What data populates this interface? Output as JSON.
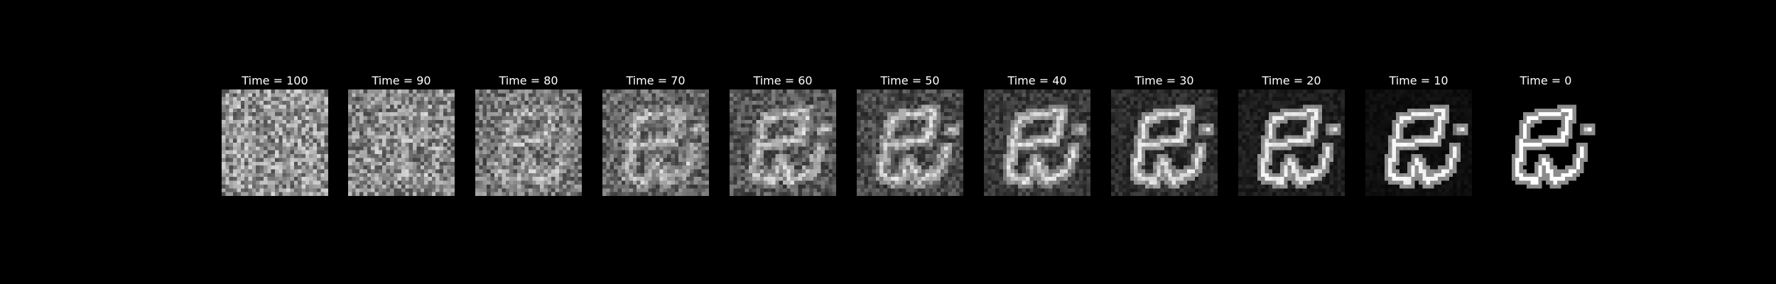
{
  "figure": {
    "background": "#000000",
    "title_color": "#ffffff",
    "colormap": "gray",
    "panels": [
      {
        "title": "Time = 100",
        "noise_level": 1.0
      },
      {
        "title": "Time = 90",
        "noise_level": 0.9
      },
      {
        "title": "Time = 80",
        "noise_level": 0.8
      },
      {
        "title": "Time = 70",
        "noise_level": 0.7
      },
      {
        "title": "Time = 60",
        "noise_level": 0.6
      },
      {
        "title": "Time = 50",
        "noise_level": 0.5
      },
      {
        "title": "Time = 40",
        "noise_level": 0.4
      },
      {
        "title": "Time = 30",
        "noise_level": 0.3
      },
      {
        "title": "Time = 20",
        "noise_level": 0.2
      },
      {
        "title": "Time = 10",
        "noise_level": 0.1
      },
      {
        "title": "Time = 0",
        "noise_level": 0.0
      }
    ]
  }
}
